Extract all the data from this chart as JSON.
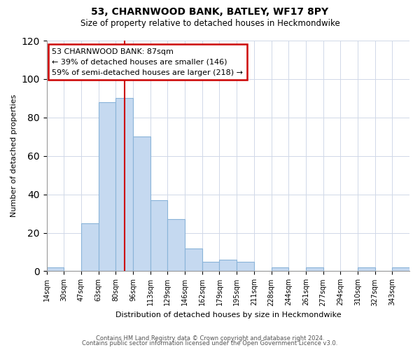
{
  "title": "53, CHARNWOOD BANK, BATLEY, WF17 8PY",
  "subtitle": "Size of property relative to detached houses in Heckmondwike",
  "xlabel": "Distribution of detached houses by size in Heckmondwike",
  "ylabel": "Number of detached properties",
  "footer_line1": "Contains HM Land Registry data © Crown copyright and database right 2024.",
  "footer_line2": "Contains public sector information licensed under the Open Government Licence v3.0.",
  "bin_labels": [
    "14sqm",
    "30sqm",
    "47sqm",
    "63sqm",
    "80sqm",
    "96sqm",
    "113sqm",
    "129sqm",
    "146sqm",
    "162sqm",
    "179sqm",
    "195sqm",
    "211sqm",
    "228sqm",
    "244sqm",
    "261sqm",
    "277sqm",
    "294sqm",
    "310sqm",
    "327sqm",
    "343sqm"
  ],
  "bar_values": [
    2,
    0,
    25,
    88,
    90,
    70,
    37,
    27,
    12,
    5,
    6,
    5,
    0,
    2,
    0,
    2,
    0,
    0,
    2,
    0,
    2
  ],
  "bar_color": "#c5d9f0",
  "bar_edge_color": "#8ab4d9",
  "property_bar_index": 4,
  "property_line_label": "53 CHARNWOOD BANK: 87sqm",
  "annotation_line1": "← 39% of detached houses are smaller (146)",
  "annotation_line2": "59% of semi-detached houses are larger (218) →",
  "annotation_box_facecolor": "#ffffff",
  "annotation_box_edgecolor": "#cc0000",
  "line_color": "#cc0000",
  "ylim": [
    0,
    120
  ],
  "yticks": [
    0,
    20,
    40,
    60,
    80,
    100,
    120
  ]
}
